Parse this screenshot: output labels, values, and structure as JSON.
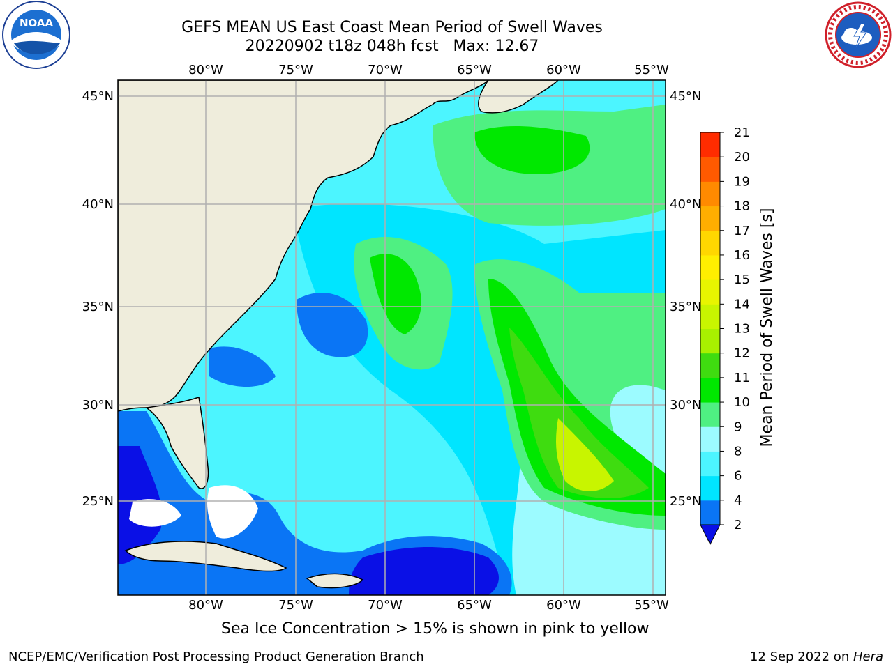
{
  "title": {
    "line1": "GEFS MEAN US East Coast Mean Period of Swell Waves",
    "line2": "20220902 t18z 048h fcst   Max: 12.67"
  },
  "logos": {
    "left": {
      "icon": "noaa-logo",
      "text": "NOAA"
    },
    "right": {
      "icon": "nws-logo"
    }
  },
  "map": {
    "projection": "plate-carree",
    "lon_range": [
      -85,
      -54
    ],
    "lat_range": [
      20.5,
      46
    ],
    "lon_ticks": [
      "80°W",
      "75°W",
      "70°W",
      "65°W",
      "60°W",
      "55°W"
    ],
    "lat_ticks": [
      "45°N",
      "40°N",
      "35°N",
      "30°N",
      "25°N"
    ],
    "grid": true,
    "colors": {
      "land": "#efeddc",
      "coastline": "#000000",
      "gridline": "#b0b0b0"
    }
  },
  "colorbar": {
    "label": "Mean Period of Swell Waves [s]",
    "ticks": [
      "2",
      "4",
      "6",
      "8",
      "9",
      "10",
      "11",
      "12",
      "13",
      "14",
      "15",
      "16",
      "17",
      "18",
      "19",
      "20",
      "21"
    ],
    "colors": [
      "#0a75f5",
      "#00e5ff",
      "#4cf5ff",
      "#9cfbff",
      "#4ff082",
      "#00e800",
      "#3fdc10",
      "#a8f000",
      "#c8f500",
      "#e8f500",
      "#ffef00",
      "#ffd700",
      "#ffae00",
      "#ff8a00",
      "#ff5a00",
      "#ff2c00",
      "#ff0000"
    ],
    "extend_color": "#0a10e6"
  },
  "caption": "Sea Ice Concentration > 15% is shown in pink to yellow",
  "footer": {
    "left": "NCEP/EMC/Verification Post Processing Product Generation Branch",
    "right_date": "12 Sep 2022 on ",
    "right_host": "Hera"
  }
}
